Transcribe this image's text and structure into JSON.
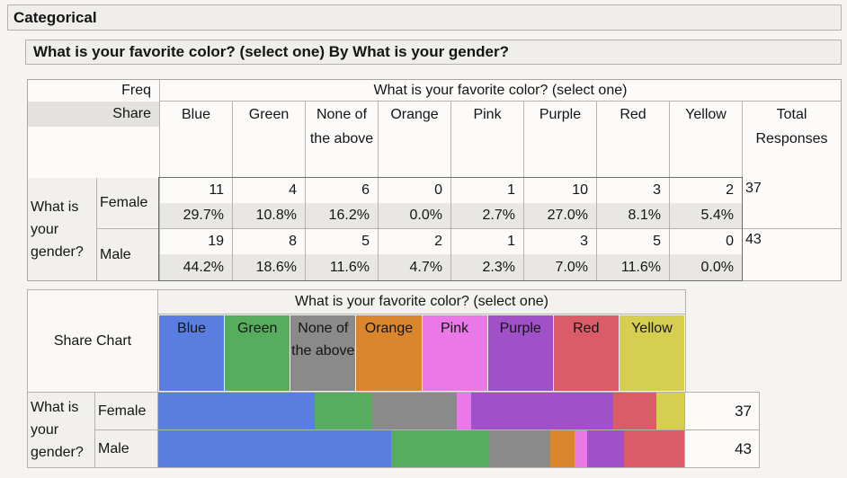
{
  "page": {
    "outline_title": "Categorical",
    "report_title": "What is your favorite color? (select one) By What is your gender?"
  },
  "freq_table": {
    "measure_labels": {
      "freq": "Freq",
      "share": "Share"
    },
    "col_span_header": "What is your favorite color? (select one)",
    "columns": [
      "Blue",
      "Green",
      "None of the above",
      "Orange",
      "Pink",
      "Purple",
      "Red",
      "Yellow"
    ],
    "total_header": "Total Responses",
    "row_group_label": "What is your gender?",
    "rows": [
      {
        "label": "Female",
        "counts": [
          11,
          4,
          6,
          0,
          1,
          10,
          3,
          2
        ],
        "shares": [
          "29.7%",
          "10.8%",
          "16.2%",
          "0.0%",
          "2.7%",
          "27.0%",
          "8.1%",
          "5.4%"
        ],
        "total": 37
      },
      {
        "label": "Male",
        "counts": [
          19,
          8,
          5,
          2,
          1,
          3,
          5,
          0
        ],
        "shares": [
          "44.2%",
          "18.6%",
          "11.6%",
          "4.7%",
          "2.3%",
          "7.0%",
          "11.6%",
          "0.0%"
        ],
        "total": 43
      }
    ]
  },
  "share_chart_panel": {
    "panel_label": "Share Chart",
    "span_header": "What is your favorite color? (select one)",
    "row_group_label": "What is your gender?",
    "row_labels": [
      "Female",
      "Male"
    ]
  },
  "chart_data": {
    "type": "bar",
    "subtype": "horizontal-stacked-share",
    "title": "What is your favorite color? (select one)",
    "categories": [
      "Blue",
      "Green",
      "None of the above",
      "Orange",
      "Pink",
      "Purple",
      "Red",
      "Yellow"
    ],
    "series": [
      {
        "name": "Female",
        "shares_pct": [
          29.7,
          10.8,
          16.2,
          0.0,
          2.7,
          27.0,
          8.1,
          5.4
        ],
        "counts": [
          11,
          4,
          6,
          0,
          1,
          10,
          3,
          2
        ],
        "total": 37
      },
      {
        "name": "Male",
        "shares_pct": [
          44.2,
          18.6,
          11.6,
          4.7,
          2.3,
          7.0,
          11.6,
          0.0
        ],
        "counts": [
          19,
          8,
          5,
          2,
          1,
          3,
          5,
          0
        ],
        "total": 43
      }
    ],
    "legend_position": "top",
    "xlim_pct": [
      0,
      100
    ],
    "colors": {
      "Blue": "#5a7ee0",
      "Green": "#57ad5e",
      "None of the above": "#8a8a8a",
      "Orange": "#d9862c",
      "Pink": "#ea78e6",
      "Purple": "#a051c7",
      "Red": "#d95c68",
      "Yellow": "#d6ce50"
    }
  }
}
